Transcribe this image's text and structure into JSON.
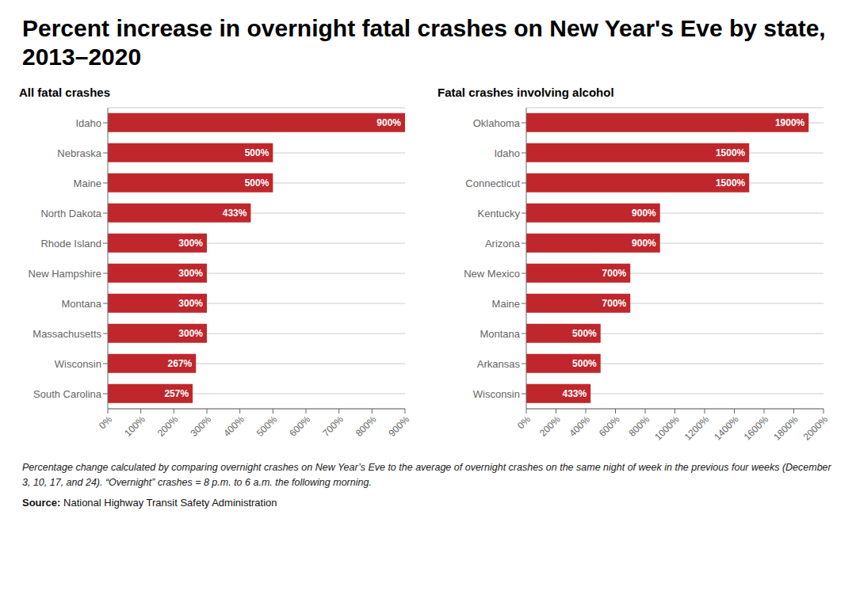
{
  "title": "Percent increase in overnight fatal crashes on New Year's Eve by state, 2013–2020",
  "annotations": [
    "Percentage change calculated by comparing overnight crashes on New Year’s Eve to the average of overnight crashes on the same night of week in the previous four weeks (December 3, 10, 17, and 24). “Overnight” crashes = 8 p.m. to 6 a.m. the following morning.",
    "Source: National Highway Transit Safety Administration"
  ],
  "chart_data": [
    {
      "type": "bar",
      "orientation": "horizontal",
      "subtitle": "All fatal crashes",
      "categories": [
        "Idaho",
        "Nebraska",
        "Maine",
        "North Dakota",
        "Rhode Island",
        "New Hampshire",
        "Montana",
        "Massachusetts",
        "Wisconsin",
        "South Carolina"
      ],
      "values": [
        900,
        500,
        500,
        433,
        300,
        300,
        300,
        300,
        267,
        257
      ],
      "value_labels": [
        "900%",
        "500%",
        "500%",
        "433%",
        "300%",
        "300%",
        "300%",
        "300%",
        "267%",
        "257%"
      ],
      "data_labels": true,
      "color": "#C0272D",
      "xlim": [
        0,
        900
      ],
      "xticks": [
        {
          "value": 0,
          "label": "0%"
        },
        {
          "value": 100,
          "label": "100%"
        },
        {
          "value": 200,
          "label": "200%"
        },
        {
          "value": 300,
          "label": "300%"
        },
        {
          "value": 400,
          "label": "400%"
        },
        {
          "value": 500,
          "label": "500%"
        },
        {
          "value": 600,
          "label": "600%"
        },
        {
          "value": 700,
          "label": "700%"
        },
        {
          "value": 800,
          "label": "800%"
        },
        {
          "value": 900,
          "label": "900%"
        }
      ],
      "grid": true
    },
    {
      "type": "bar",
      "orientation": "horizontal",
      "subtitle": "Fatal crashes involving alcohol",
      "categories": [
        "Oklahoma",
        "Idaho",
        "Connecticut",
        "Kentucky",
        "Arizona",
        "New Mexico",
        "Maine",
        "Montana",
        "Arkansas",
        "Wisconsin"
      ],
      "values": [
        1900,
        1500,
        1500,
        900,
        900,
        700,
        700,
        500,
        500,
        433
      ],
      "value_labels": [
        "1900%",
        "1500%",
        "1500%",
        "900%",
        "900%",
        "700%",
        "700%",
        "500%",
        "500%",
        "433%"
      ],
      "data_labels": true,
      "color": "#C0272D",
      "xlim": [
        0,
        2000
      ],
      "xticks": [
        {
          "value": 0,
          "label": "0%"
        },
        {
          "value": 200,
          "label": "200%"
        },
        {
          "value": 400,
          "label": "400%"
        },
        {
          "value": 600,
          "label": "600%"
        },
        {
          "value": 800,
          "label": "800%"
        },
        {
          "value": 1000,
          "label": "1000%"
        },
        {
          "value": 1200,
          "label": "1200%"
        },
        {
          "value": 1400,
          "label": "1400%"
        },
        {
          "value": 1600,
          "label": "1600%"
        },
        {
          "value": 1800,
          "label": "1800%"
        },
        {
          "value": 2000,
          "label": "2000%"
        }
      ],
      "grid": true
    }
  ]
}
